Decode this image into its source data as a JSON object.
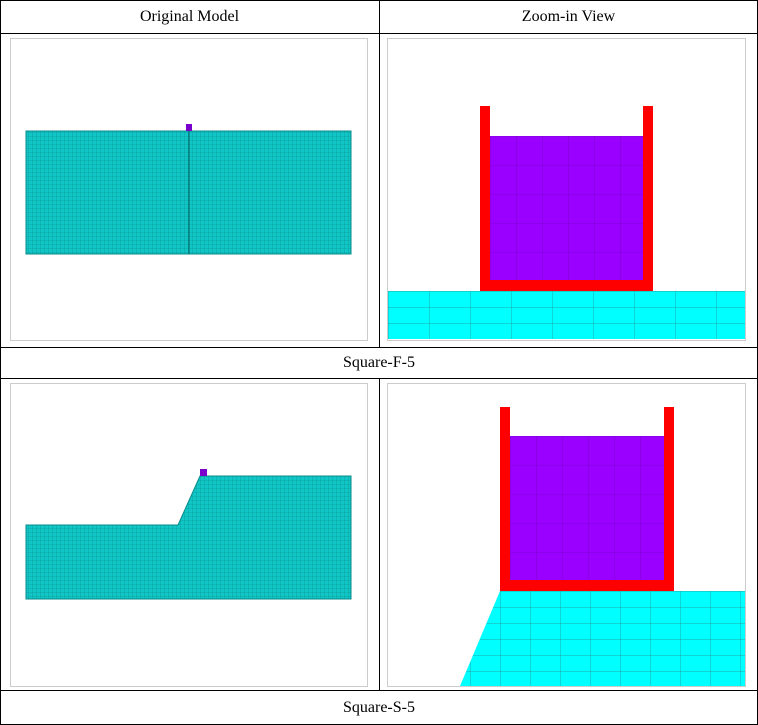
{
  "table": {
    "header": [
      "Original Model",
      "Zoom-in View"
    ],
    "captions": [
      "Square-F-5",
      "Square-S-5"
    ]
  }
}
